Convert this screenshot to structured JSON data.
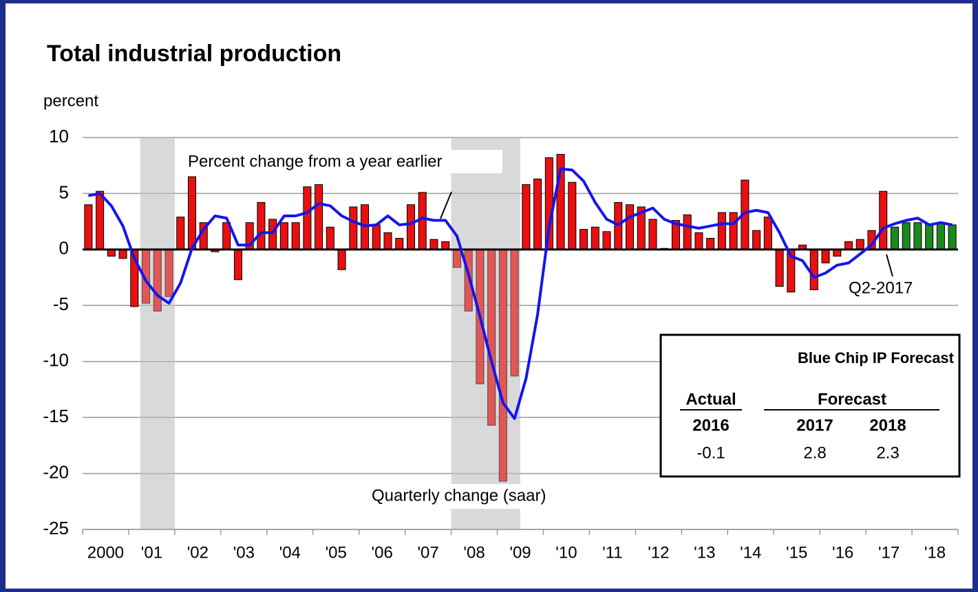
{
  "chart_data": {
    "type": "bar",
    "title": "Total industrial production",
    "y_axis_label": "percent",
    "xlim": [
      2000,
      2019
    ],
    "ylim": [
      -25,
      10
    ],
    "yticks": [
      10,
      5,
      0,
      -5,
      -10,
      -15,
      -20,
      -25
    ],
    "grid": true,
    "xtick_marks": [
      2000,
      2001,
      2002,
      2003,
      2004,
      2005,
      2006,
      2007,
      2008,
      2009,
      2010,
      2011,
      2012,
      2013,
      2014,
      2015,
      2016,
      2017,
      2018,
      2019
    ],
    "xticks": [
      {
        "value": 2000.5,
        "label": "2000"
      },
      {
        "value": 2001.5,
        "label": "'01"
      },
      {
        "value": 2002.5,
        "label": "'02"
      },
      {
        "value": 2003.5,
        "label": "'03"
      },
      {
        "value": 2004.5,
        "label": "'04"
      },
      {
        "value": 2005.5,
        "label": "'05"
      },
      {
        "value": 2006.5,
        "label": "'06"
      },
      {
        "value": 2007.5,
        "label": "'07"
      },
      {
        "value": 2008.5,
        "label": "'08"
      },
      {
        "value": 2009.5,
        "label": "'09"
      },
      {
        "value": 2010.5,
        "label": "'10"
      },
      {
        "value": 2011.5,
        "label": "'11"
      },
      {
        "value": 2012.5,
        "label": "'12"
      },
      {
        "value": 2013.5,
        "label": "'13"
      },
      {
        "value": 2014.5,
        "label": "'14"
      },
      {
        "value": 2015.5,
        "label": "'15"
      },
      {
        "value": 2016.5,
        "label": "'16"
      },
      {
        "value": 2017.5,
        "label": "'17"
      },
      {
        "value": 2018.5,
        "label": "'18"
      }
    ],
    "shaded_periods": [
      [
        2001.25,
        2002.0
      ],
      [
        2008.0,
        2009.5
      ]
    ],
    "x": [
      2000.125,
      2000.375,
      2000.625,
      2000.875,
      2001.125,
      2001.375,
      2001.625,
      2001.875,
      2002.125,
      2002.375,
      2002.625,
      2002.875,
      2003.125,
      2003.375,
      2003.625,
      2003.875,
      2004.125,
      2004.375,
      2004.625,
      2004.875,
      2005.125,
      2005.375,
      2005.625,
      2005.875,
      2006.125,
      2006.375,
      2006.625,
      2006.875,
      2007.125,
      2007.375,
      2007.625,
      2007.875,
      2008.125,
      2008.375,
      2008.625,
      2008.875,
      2009.125,
      2009.375,
      2009.625,
      2009.875,
      2010.125,
      2010.375,
      2010.625,
      2010.875,
      2011.125,
      2011.375,
      2011.625,
      2011.875,
      2012.125,
      2012.375,
      2012.625,
      2012.875,
      2013.125,
      2013.375,
      2013.625,
      2013.875,
      2014.125,
      2014.375,
      2014.625,
      2014.875,
      2015.125,
      2015.375,
      2015.625,
      2015.875,
      2016.125,
      2016.375,
      2016.625,
      2016.875,
      2017.125,
      2017.375,
      2017.625,
      2017.875,
      2018.125,
      2018.375,
      2018.625,
      2018.875
    ],
    "series": [
      {
        "name": "Quarterly change (saar)",
        "type": "bar",
        "values": [
          4.0,
          5.2,
          -0.6,
          -0.8,
          -5.1,
          -4.8,
          -5.5,
          -4.2,
          2.9,
          6.5,
          2.4,
          -0.2,
          2.4,
          -2.7,
          2.4,
          4.2,
          2.7,
          2.4,
          2.4,
          5.6,
          5.8,
          2.0,
          -1.8,
          3.8,
          4.0,
          2.2,
          1.5,
          1.0,
          4.0,
          5.1,
          0.9,
          0.7,
          -1.6,
          -5.5,
          -12.0,
          -15.7,
          -20.7,
          -11.3,
          5.8,
          6.3,
          8.2,
          8.5,
          6.0,
          1.8,
          2.0,
          1.6,
          4.2,
          4.0,
          3.8,
          2.7,
          0.1,
          2.6,
          3.1,
          1.5,
          1.0,
          3.3,
          3.3,
          6.2,
          1.7,
          2.9,
          -3.3,
          -3.8,
          0.4,
          -3.6,
          -1.2,
          -0.6,
          0.7,
          0.9,
          1.7,
          5.2,
          2.0,
          2.4,
          2.4,
          2.3,
          2.3,
          2.2
        ],
        "colors": [
          "#e81010",
          "#e81010",
          "#e81010",
          "#e81010",
          "#e81010",
          "#e81010",
          "#e81010",
          "#e81010",
          "#e81010",
          "#e81010",
          "#e81010",
          "#e81010",
          "#e81010",
          "#e81010",
          "#e81010",
          "#e81010",
          "#e81010",
          "#e81010",
          "#e81010",
          "#e81010",
          "#e81010",
          "#e81010",
          "#e81010",
          "#e81010",
          "#e81010",
          "#e81010",
          "#e81010",
          "#e81010",
          "#e81010",
          "#e81010",
          "#e81010",
          "#e81010",
          "#e81010",
          "#e81010",
          "#e81010",
          "#e81010",
          "#e81010",
          "#e81010",
          "#e81010",
          "#e81010",
          "#e81010",
          "#e81010",
          "#e81010",
          "#e81010",
          "#e81010",
          "#e81010",
          "#e81010",
          "#e81010",
          "#e81010",
          "#e81010",
          "#e81010",
          "#e81010",
          "#e81010",
          "#e81010",
          "#e81010",
          "#e81010",
          "#e81010",
          "#e81010",
          "#e81010",
          "#e81010",
          "#e81010",
          "#e81010",
          "#e81010",
          "#e81010",
          "#e81010",
          "#e81010",
          "#e81010",
          "#e81010",
          "#e81010",
          "#e81010",
          "#1a8a1a",
          "#1a8a1a",
          "#1a8a1a",
          "#1a8a1a",
          "#1a8a1a",
          "#1a8a1a"
        ]
      },
      {
        "name": "Percent change from a year earlier",
        "type": "line",
        "color": "#1414f0",
        "values": [
          4.8,
          5.0,
          3.9,
          2.1,
          -0.8,
          -2.8,
          -4.1,
          -4.8,
          -3.0,
          0.1,
          1.8,
          3.0,
          2.8,
          0.4,
          0.4,
          1.5,
          1.5,
          3.0,
          3.0,
          3.3,
          4.1,
          3.9,
          3.0,
          2.5,
          2.1,
          2.2,
          3.0,
          2.2,
          2.3,
          2.8,
          2.6,
          2.6,
          1.2,
          -2.2,
          -6.0,
          -10.0,
          -13.7,
          -15.1,
          -11.5,
          -5.8,
          2.0,
          7.2,
          7.1,
          6.1,
          4.2,
          2.7,
          2.2,
          2.9,
          3.3,
          3.7,
          2.7,
          2.3,
          2.1,
          1.9,
          2.1,
          2.3,
          2.3,
          3.3,
          3.5,
          3.3,
          1.5,
          -0.6,
          -1.0,
          -2.5,
          -2.1,
          -1.4,
          -1.2,
          -0.4,
          0.4,
          1.9,
          2.3,
          2.6,
          2.8,
          2.2,
          2.4,
          2.2
        ]
      }
    ],
    "annotations": [
      "Q2-2017"
    ],
    "table": {
      "title": "Blue Chip IP Forecast",
      "header": [
        "Actual",
        "Forecast"
      ],
      "years": [
        "2016",
        "2017",
        "2018"
      ],
      "values": [
        -0.1,
        2.8,
        2.3
      ]
    }
  }
}
